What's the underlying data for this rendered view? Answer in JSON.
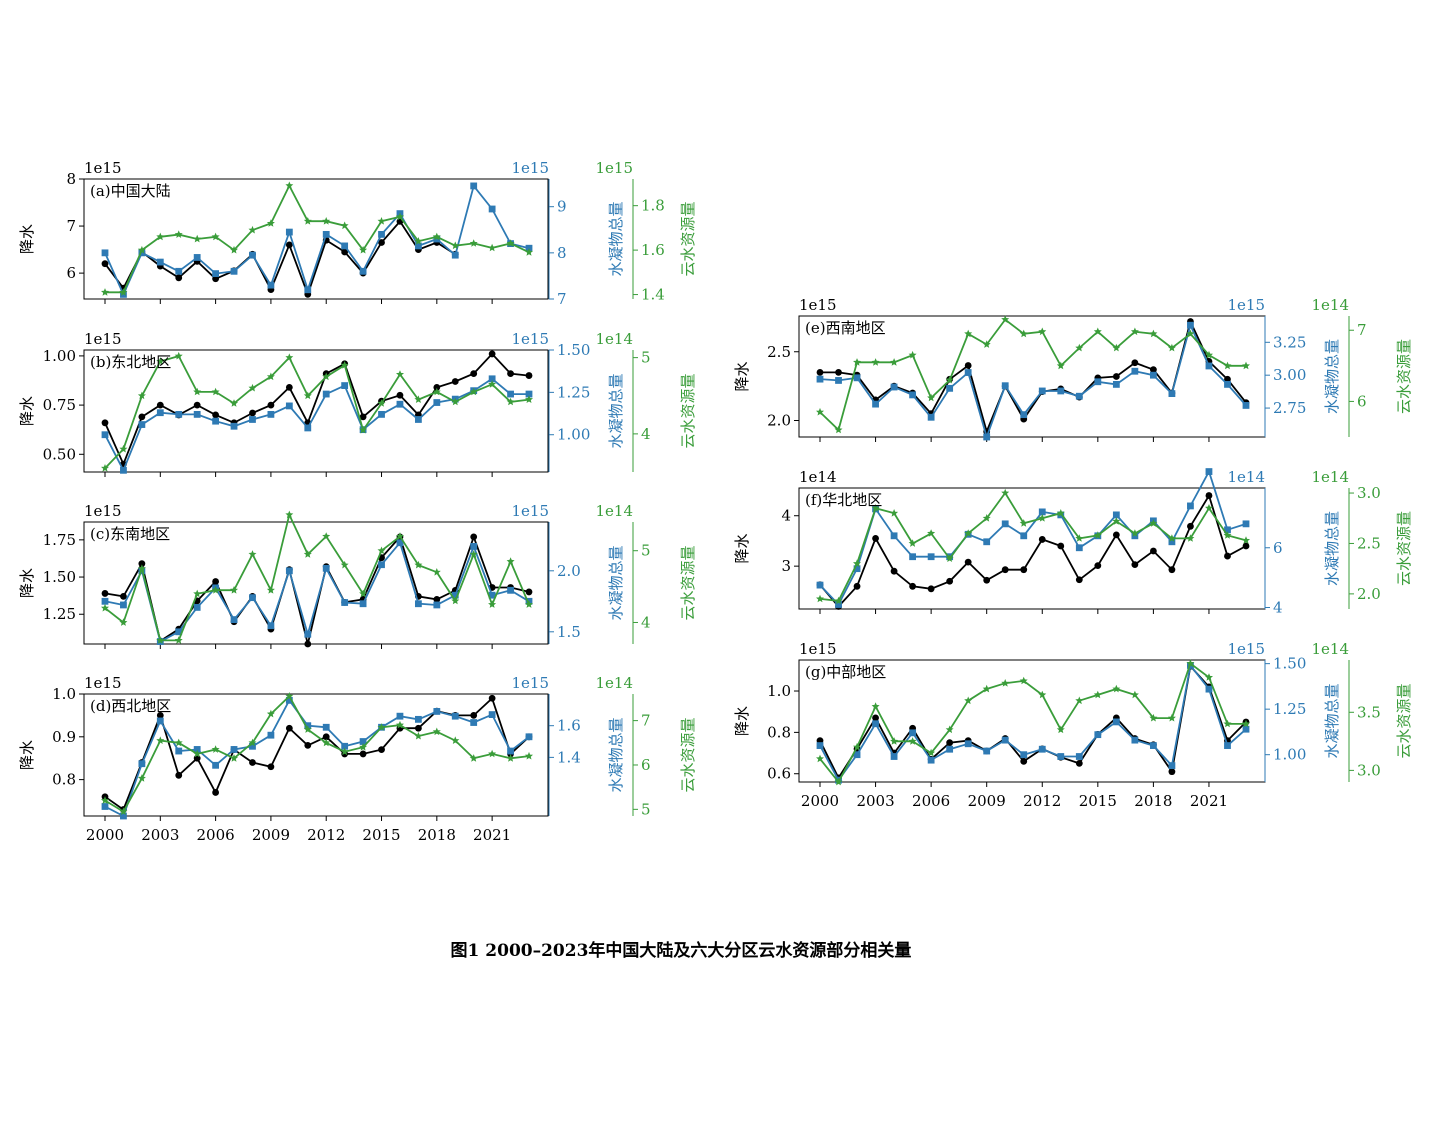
{
  "caption": "图1 2000–2023年中国大陆及六大分区云水资源部分相关量",
  "colors": {
    "precip": "#000000",
    "hydro": "#2e7ab4",
    "cloud": "#3a9d3a"
  },
  "chart_data": [
    {
      "type": "line",
      "title": "(a)中国大陆",
      "ylabel": "降水",
      "y2label": "水凝物总量",
      "y3label": "云水资源量",
      "x": [
        2000,
        2001,
        2002,
        2003,
        2004,
        2005,
        2006,
        2007,
        2008,
        2009,
        2010,
        2011,
        2012,
        2013,
        2014,
        2015,
        2016,
        2017,
        2018,
        2019,
        2020,
        2021,
        2022,
        2023
      ],
      "xticks": [
        "2000",
        "2003",
        "2006",
        "2009",
        "2012",
        "2015",
        "2018",
        "2021"
      ],
      "axes": [
        {
          "exponent": "1e15",
          "range": [
            5.45,
            8.0
          ],
          "ticks": [
            "6",
            "7",
            "8"
          ]
        },
        {
          "exponent": "1e15",
          "range": [
            7.0,
            9.6
          ],
          "ticks": [
            "7",
            "8",
            "9"
          ]
        },
        {
          "exponent": "1e15",
          "range": [
            1.38,
            1.92
          ],
          "ticks": [
            "1.4",
            "1.6",
            "1.8"
          ]
        }
      ],
      "series": [
        [
          6.2,
          5.68,
          6.45,
          6.15,
          5.9,
          6.25,
          5.88,
          6.05,
          6.4,
          5.65,
          6.6,
          5.55,
          6.7,
          6.45,
          6.0,
          6.65,
          7.1,
          6.5,
          6.65,
          6.4,
          null,
          null,
          null,
          null
        ],
        [
          8.0,
          7.1,
          8.0,
          7.8,
          7.6,
          7.9,
          7.55,
          7.6,
          7.95,
          7.3,
          8.45,
          7.2,
          8.4,
          8.15,
          7.6,
          8.4,
          8.85,
          8.15,
          8.3,
          7.95,
          9.45,
          8.95,
          8.2,
          8.1
        ],
        [
          1.41,
          1.41,
          1.6,
          1.66,
          1.67,
          1.65,
          1.66,
          1.6,
          1.69,
          1.72,
          1.89,
          1.73,
          1.73,
          1.71,
          1.6,
          1.73,
          1.75,
          1.64,
          1.66,
          1.62,
          1.63,
          1.61,
          1.63,
          1.59
        ]
      ]
    },
    {
      "type": "line",
      "title": "(b)东北地区",
      "ylabel": "降水",
      "y2label": "水凝物总量",
      "y3label": "云水资源量",
      "x": [
        2000,
        2001,
        2002,
        2003,
        2004,
        2005,
        2006,
        2007,
        2008,
        2009,
        2010,
        2011,
        2012,
        2013,
        2014,
        2015,
        2016,
        2017,
        2018,
        2019,
        2020,
        2021,
        2022,
        2023
      ],
      "xticks": [
        "2000",
        "2003",
        "2006",
        "2009",
        "2012",
        "2015",
        "2018",
        "2021"
      ],
      "axes": [
        {
          "exponent": "1e15",
          "range": [
            0.41,
            1.03
          ],
          "ticks": [
            "0.50",
            "0.75",
            "1.00"
          ]
        },
        {
          "exponent": "1e15",
          "range": [
            0.78,
            1.5
          ],
          "ticks": [
            "1.00",
            "1.25",
            "1.50"
          ]
        },
        {
          "exponent": "1e14",
          "range": [
            3.5,
            5.1
          ],
          "ticks": [
            "4",
            "5"
          ]
        }
      ],
      "series": [
        [
          0.66,
          0.45,
          0.69,
          0.75,
          0.7,
          0.75,
          0.7,
          0.66,
          0.71,
          0.75,
          0.84,
          0.66,
          0.91,
          0.96,
          0.69,
          0.77,
          0.8,
          0.7,
          0.84,
          0.87,
          0.91,
          1.01,
          0.91,
          0.9
        ],
        [
          1.0,
          0.79,
          1.06,
          1.13,
          1.12,
          1.12,
          1.08,
          1.05,
          1.09,
          1.12,
          1.17,
          1.04,
          1.24,
          1.29,
          1.03,
          1.12,
          1.18,
          1.09,
          1.19,
          1.21,
          1.26,
          1.33,
          1.24,
          1.24
        ],
        [
          3.55,
          3.8,
          4.5,
          4.95,
          5.02,
          4.55,
          4.55,
          4.4,
          4.6,
          4.75,
          5.0,
          4.5,
          4.75,
          4.9,
          4.05,
          4.4,
          4.78,
          4.45,
          4.55,
          4.42,
          4.55,
          4.65,
          4.42,
          4.45
        ]
      ]
    },
    {
      "type": "line",
      "title": "(c)东南地区",
      "ylabel": "降水",
      "y2label": "水凝物总量",
      "y3label": "云水资源量",
      "x": [
        2000,
        2001,
        2002,
        2003,
        2004,
        2005,
        2006,
        2007,
        2008,
        2009,
        2010,
        2011,
        2012,
        2013,
        2014,
        2015,
        2016,
        2017,
        2018,
        2019,
        2020,
        2021,
        2022,
        2023
      ],
      "xticks": [
        "2000",
        "2003",
        "2006",
        "2009",
        "2012",
        "2015",
        "2018",
        "2021"
      ],
      "axes": [
        {
          "exponent": "1e15",
          "range": [
            1.05,
            1.87
          ],
          "ticks": [
            "1.25",
            "1.50",
            "1.75"
          ]
        },
        {
          "exponent": "1e15",
          "range": [
            1.4,
            2.4
          ],
          "ticks": [
            "1.5",
            "2.0"
          ]
        },
        {
          "exponent": "1e14",
          "range": [
            3.7,
            5.4
          ],
          "ticks": [
            "4",
            "5"
          ]
        }
      ],
      "series": [
        [
          1.39,
          1.37,
          1.59,
          1.07,
          1.15,
          1.34,
          1.47,
          1.2,
          1.37,
          1.15,
          1.55,
          1.05,
          1.57,
          1.33,
          1.35,
          1.63,
          1.77,
          1.37,
          1.35,
          1.41,
          1.77,
          1.43,
          1.43,
          1.4
        ],
        [
          1.75,
          1.72,
          2.0,
          1.42,
          1.5,
          1.7,
          1.86,
          1.6,
          1.78,
          1.55,
          2.0,
          1.48,
          2.02,
          1.74,
          1.73,
          2.05,
          2.23,
          1.73,
          1.72,
          1.8,
          2.2,
          1.8,
          1.84,
          1.75
        ],
        [
          4.2,
          4.0,
          4.75,
          3.75,
          3.75,
          4.4,
          4.45,
          4.45,
          4.95,
          4.45,
          5.5,
          4.95,
          5.2,
          4.8,
          4.4,
          5.0,
          5.2,
          4.8,
          4.7,
          4.3,
          4.95,
          4.25,
          4.85,
          4.25
        ]
      ]
    },
    {
      "type": "line",
      "title": "(d)西北地区",
      "ylabel": "降水",
      "y2label": "水凝物总量",
      "y3label": "云水资源量",
      "x": [
        2000,
        2001,
        2002,
        2003,
        2004,
        2005,
        2006,
        2007,
        2008,
        2009,
        2010,
        2011,
        2012,
        2013,
        2014,
        2015,
        2016,
        2017,
        2018,
        2019,
        2020,
        2021,
        2022,
        2023
      ],
      "xticks": [
        "2000",
        "2003",
        "2006",
        "2009",
        "2012",
        "2015",
        "2018",
        "2021"
      ],
      "axes": [
        {
          "exponent": "1e15",
          "range": [
            0.715,
            1.0
          ],
          "ticks": [
            "0.8",
            "0.9",
            "1.0"
          ]
        },
        {
          "exponent": "1e15",
          "range": [
            1.03,
            1.8
          ],
          "ticks": [
            "1.4",
            "1.6"
          ]
        },
        {
          "exponent": "1e14",
          "range": [
            4.85,
            7.6
          ],
          "ticks": [
            "5",
            "6",
            "7"
          ]
        }
      ],
      "series": [
        [
          0.76,
          0.73,
          0.84,
          0.95,
          0.81,
          0.85,
          0.77,
          0.87,
          0.84,
          0.83,
          0.92,
          0.88,
          0.9,
          0.86,
          0.86,
          0.87,
          0.92,
          0.92,
          0.96,
          0.95,
          0.95,
          0.99,
          0.86,
          0.9
        ],
        [
          1.09,
          1.03,
          1.36,
          1.63,
          1.44,
          1.45,
          1.35,
          1.45,
          1.47,
          1.54,
          1.76,
          1.6,
          1.59,
          1.47,
          1.5,
          1.59,
          1.66,
          1.64,
          1.69,
          1.66,
          1.62,
          1.67,
          1.44,
          1.53
        ],
        [
          5.2,
          4.95,
          5.7,
          6.55,
          6.5,
          6.25,
          6.35,
          6.15,
          6.5,
          7.15,
          7.55,
          6.8,
          6.5,
          6.3,
          6.4,
          6.85,
          6.9,
          6.65,
          6.75,
          6.55,
          6.15,
          6.25,
          6.15,
          6.2
        ]
      ]
    },
    {
      "type": "line",
      "title": "(e)西南地区",
      "ylabel": "降水",
      "y2label": "水凝物总量",
      "y3label": "云水资源量",
      "x": [
        2000,
        2001,
        2002,
        2003,
        2004,
        2005,
        2006,
        2007,
        2008,
        2009,
        2010,
        2011,
        2012,
        2013,
        2014,
        2015,
        2016,
        2017,
        2018,
        2019,
        2020,
        2021,
        2022,
        2023
      ],
      "xticks": [
        "2000",
        "2003",
        "2006",
        "2009",
        "2012",
        "2015",
        "2018",
        "2021"
      ],
      "axes": [
        {
          "exponent": "1e15",
          "range": [
            1.88,
            2.76
          ],
          "ticks": [
            "2.0",
            "2.5"
          ]
        },
        {
          "exponent": "1e15",
          "range": [
            2.53,
            3.45
          ],
          "ticks": [
            "2.75",
            "3.00",
            "3.25"
          ]
        },
        {
          "exponent": "1e14",
          "range": [
            5.5,
            7.2
          ],
          "ticks": [
            "6",
            "7"
          ]
        }
      ],
      "series": [
        [
          2.35,
          2.35,
          2.33,
          2.15,
          2.25,
          2.2,
          2.05,
          2.3,
          2.4,
          1.92,
          2.25,
          2.01,
          2.21,
          2.23,
          2.17,
          2.31,
          2.32,
          2.42,
          2.37,
          2.2,
          2.72,
          2.43,
          2.3,
          2.13
        ],
        [
          2.97,
          2.96,
          2.98,
          2.78,
          2.91,
          2.85,
          2.68,
          2.9,
          3.02,
          2.53,
          2.92,
          2.7,
          2.88,
          2.88,
          2.84,
          2.95,
          2.93,
          3.03,
          3.0,
          2.86,
          3.38,
          3.07,
          2.93,
          2.77
        ],
        [
          5.85,
          5.6,
          6.55,
          6.55,
          6.55,
          6.65,
          6.05,
          6.3,
          6.95,
          6.8,
          7.15,
          6.95,
          6.98,
          6.5,
          6.75,
          6.98,
          6.75,
          6.98,
          6.95,
          6.75,
          6.95,
          6.65,
          6.5,
          6.5
        ]
      ]
    },
    {
      "type": "line",
      "title": "(f)华北地区",
      "ylabel": "降水",
      "y2label": "水凝物总量",
      "y3label": "云水资源量",
      "x": [
        2000,
        2001,
        2002,
        2003,
        2004,
        2005,
        2006,
        2007,
        2008,
        2009,
        2010,
        2011,
        2012,
        2013,
        2014,
        2015,
        2016,
        2017,
        2018,
        2019,
        2020,
        2021,
        2022,
        2023
      ],
      "xticks": [
        "2000",
        "2003",
        "2006",
        "2009",
        "2012",
        "2015",
        "2018",
        "2021"
      ],
      "axes": [
        {
          "exponent": "1e14",
          "range": [
            2.15,
            4.55
          ],
          "ticks": [
            "3",
            "4"
          ]
        },
        {
          "exponent": "1e14",
          "range": [
            3.95,
            8.0
          ],
          "ticks": [
            "4",
            "6"
          ]
        },
        {
          "exponent": "1e14",
          "range": [
            1.85,
            3.05
          ],
          "ticks": [
            "2.0",
            "2.5",
            "3.0"
          ]
        }
      ],
      "series": [
        [
          2.63,
          2.2,
          2.6,
          3.55,
          2.9,
          2.6,
          2.55,
          2.7,
          3.08,
          2.72,
          2.93,
          2.93,
          3.53,
          3.4,
          2.73,
          3.01,
          3.62,
          3.03,
          3.3,
          2.93,
          3.79,
          4.4,
          3.2,
          3.4
        ],
        [
          4.75,
          4.1,
          5.3,
          7.3,
          6.4,
          5.7,
          5.7,
          5.7,
          6.45,
          6.2,
          6.8,
          6.4,
          7.2,
          7.1,
          6.0,
          6.4,
          7.1,
          6.4,
          6.9,
          6.2,
          7.4,
          8.55,
          6.6,
          6.8
        ],
        [
          1.95,
          1.93,
          2.3,
          2.85,
          2.8,
          2.5,
          2.6,
          2.35,
          2.6,
          2.75,
          3.0,
          2.7,
          2.75,
          2.8,
          2.55,
          2.58,
          2.72,
          2.6,
          2.7,
          2.55,
          2.55,
          2.85,
          2.58,
          2.53
        ]
      ]
    },
    {
      "type": "line",
      "title": "(g)中部地区",
      "ylabel": "降水",
      "y2label": "水凝物总量",
      "y3label": "云水资源量",
      "x": [
        2000,
        2001,
        2002,
        2003,
        2004,
        2005,
        2006,
        2007,
        2008,
        2009,
        2010,
        2011,
        2012,
        2013,
        2014,
        2015,
        2016,
        2017,
        2018,
        2019,
        2020,
        2021,
        2022,
        2023
      ],
      "xticks": [
        "2000",
        "2003",
        "2006",
        "2009",
        "2012",
        "2015",
        "2018",
        "2021"
      ],
      "axes": [
        {
          "exponent": "1e15",
          "range": [
            0.56,
            1.15
          ],
          "ticks": [
            "0.6",
            "0.8",
            "1.0"
          ]
        },
        {
          "exponent": "1e15",
          "range": [
            0.85,
            1.52
          ],
          "ticks": [
            "1.00",
            "1.25",
            "1.50"
          ]
        },
        {
          "exponent": "1e14",
          "range": [
            2.9,
            3.95
          ],
          "ticks": [
            "3.0",
            "3.5"
          ]
        }
      ],
      "series": [
        [
          0.76,
          0.58,
          0.72,
          0.87,
          0.7,
          0.82,
          0.67,
          0.75,
          0.76,
          0.71,
          0.77,
          0.66,
          0.72,
          0.68,
          0.65,
          0.79,
          0.87,
          0.77,
          0.74,
          0.61,
          1.12,
          1.02,
          0.76,
          0.85
        ],
        [
          1.05,
          0.86,
          1.0,
          1.17,
          0.99,
          1.12,
          0.97,
          1.03,
          1.06,
          1.02,
          1.08,
          1.0,
          1.03,
          0.99,
          0.99,
          1.11,
          1.18,
          1.08,
          1.05,
          0.94,
          1.49,
          1.36,
          1.05,
          1.14
        ],
        [
          3.1,
          2.9,
          3.2,
          3.55,
          3.25,
          3.25,
          3.15,
          3.35,
          3.6,
          3.7,
          3.75,
          3.77,
          3.65,
          3.35,
          3.6,
          3.65,
          3.7,
          3.65,
          3.45,
          3.45,
          3.92,
          3.8,
          3.4,
          3.4
        ]
      ]
    }
  ]
}
